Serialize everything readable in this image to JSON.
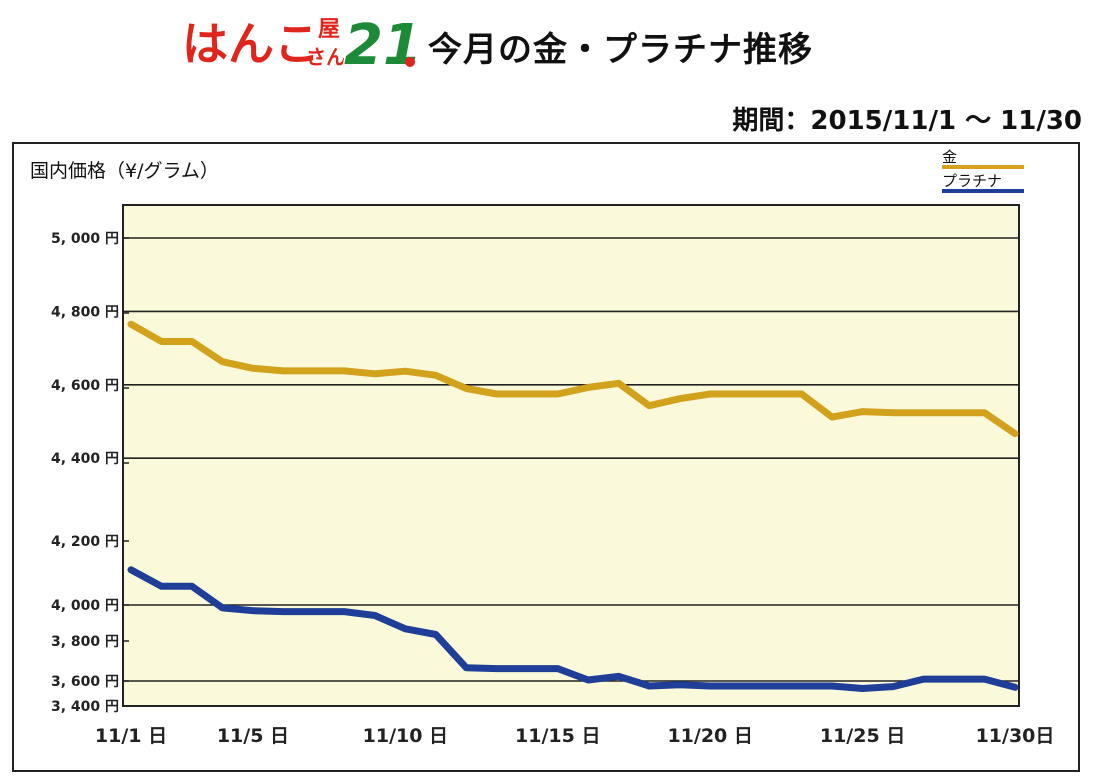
{
  "header": {
    "logo_text": "はんこ屋さん21",
    "logo_colors": {
      "red": "#e0261c",
      "green": "#1c8a36",
      "outline": "#ffffff"
    },
    "title": "今月の金・プラチナ推移",
    "period": "期間：2015/11/1 〜 11/30"
  },
  "chart_data": {
    "type": "line",
    "ylabel": "国内価格（¥/グラム）",
    "xlabel": "",
    "x": [
      "11/1",
      "11/2",
      "11/3",
      "11/4",
      "11/5",
      "11/6",
      "11/7",
      "11/8",
      "11/9",
      "11/10",
      "11/11",
      "11/12",
      "11/13",
      "11/14",
      "11/15",
      "11/16",
      "11/17",
      "11/18",
      "11/19",
      "11/20",
      "11/21",
      "11/22",
      "11/23",
      "11/24",
      "11/25",
      "11/26",
      "11/27",
      "11/28",
      "11/29",
      "11/30"
    ],
    "x_tick_labels": [
      "11/1 日",
      "11/5 日",
      "11/10 日",
      "11/15 日",
      "11/20 日",
      "11/25 日",
      "11/30日"
    ],
    "x_tick_positions": [
      "11/1",
      "11/5",
      "11/10",
      "11/15",
      "11/20",
      "11/25",
      "11/30"
    ],
    "y_tick_labels": [
      "5, 000 円",
      "4, 800 円",
      "4, 600 円",
      "4, 400 円",
      "4, 200 円",
      "4, 000 円",
      "3, 800 円",
      "3, 600 円",
      "3, 400 円"
    ],
    "y_upper_range": [
      4000,
      5000
    ],
    "y_lower_range": [
      3400,
      3600
    ],
    "axis_break": true,
    "grid": true,
    "legend_position": "top-right",
    "plot_background": "#fafadb",
    "series": [
      {
        "name": "金",
        "color": "#d2a21d",
        "values": [
          4765,
          4718,
          4718,
          4663,
          4645,
          4638,
          4638,
          4638,
          4630,
          4637,
          4626,
          4590,
          4575,
          4575,
          4575,
          4593,
          4604,
          4543,
          4562,
          4575,
          4575,
          4575,
          4575,
          4512,
          4527,
          4524,
          4524,
          4524,
          4524,
          4467
        ]
      },
      {
        "name": "プラチナ",
        "color": "#1f3e98",
        "values": [
          4096,
          4051,
          4051,
          3985,
          3970,
          3965,
          3965,
          3965,
          3945,
          3875,
          3845,
          3670,
          3665,
          3665,
          3665,
          3605,
          3625,
          3560,
          3570,
          3560,
          3560,
          3560,
          3560,
          3560,
          3540,
          3555,
          3610,
          3610,
          3610,
          3550
        ]
      }
    ]
  }
}
